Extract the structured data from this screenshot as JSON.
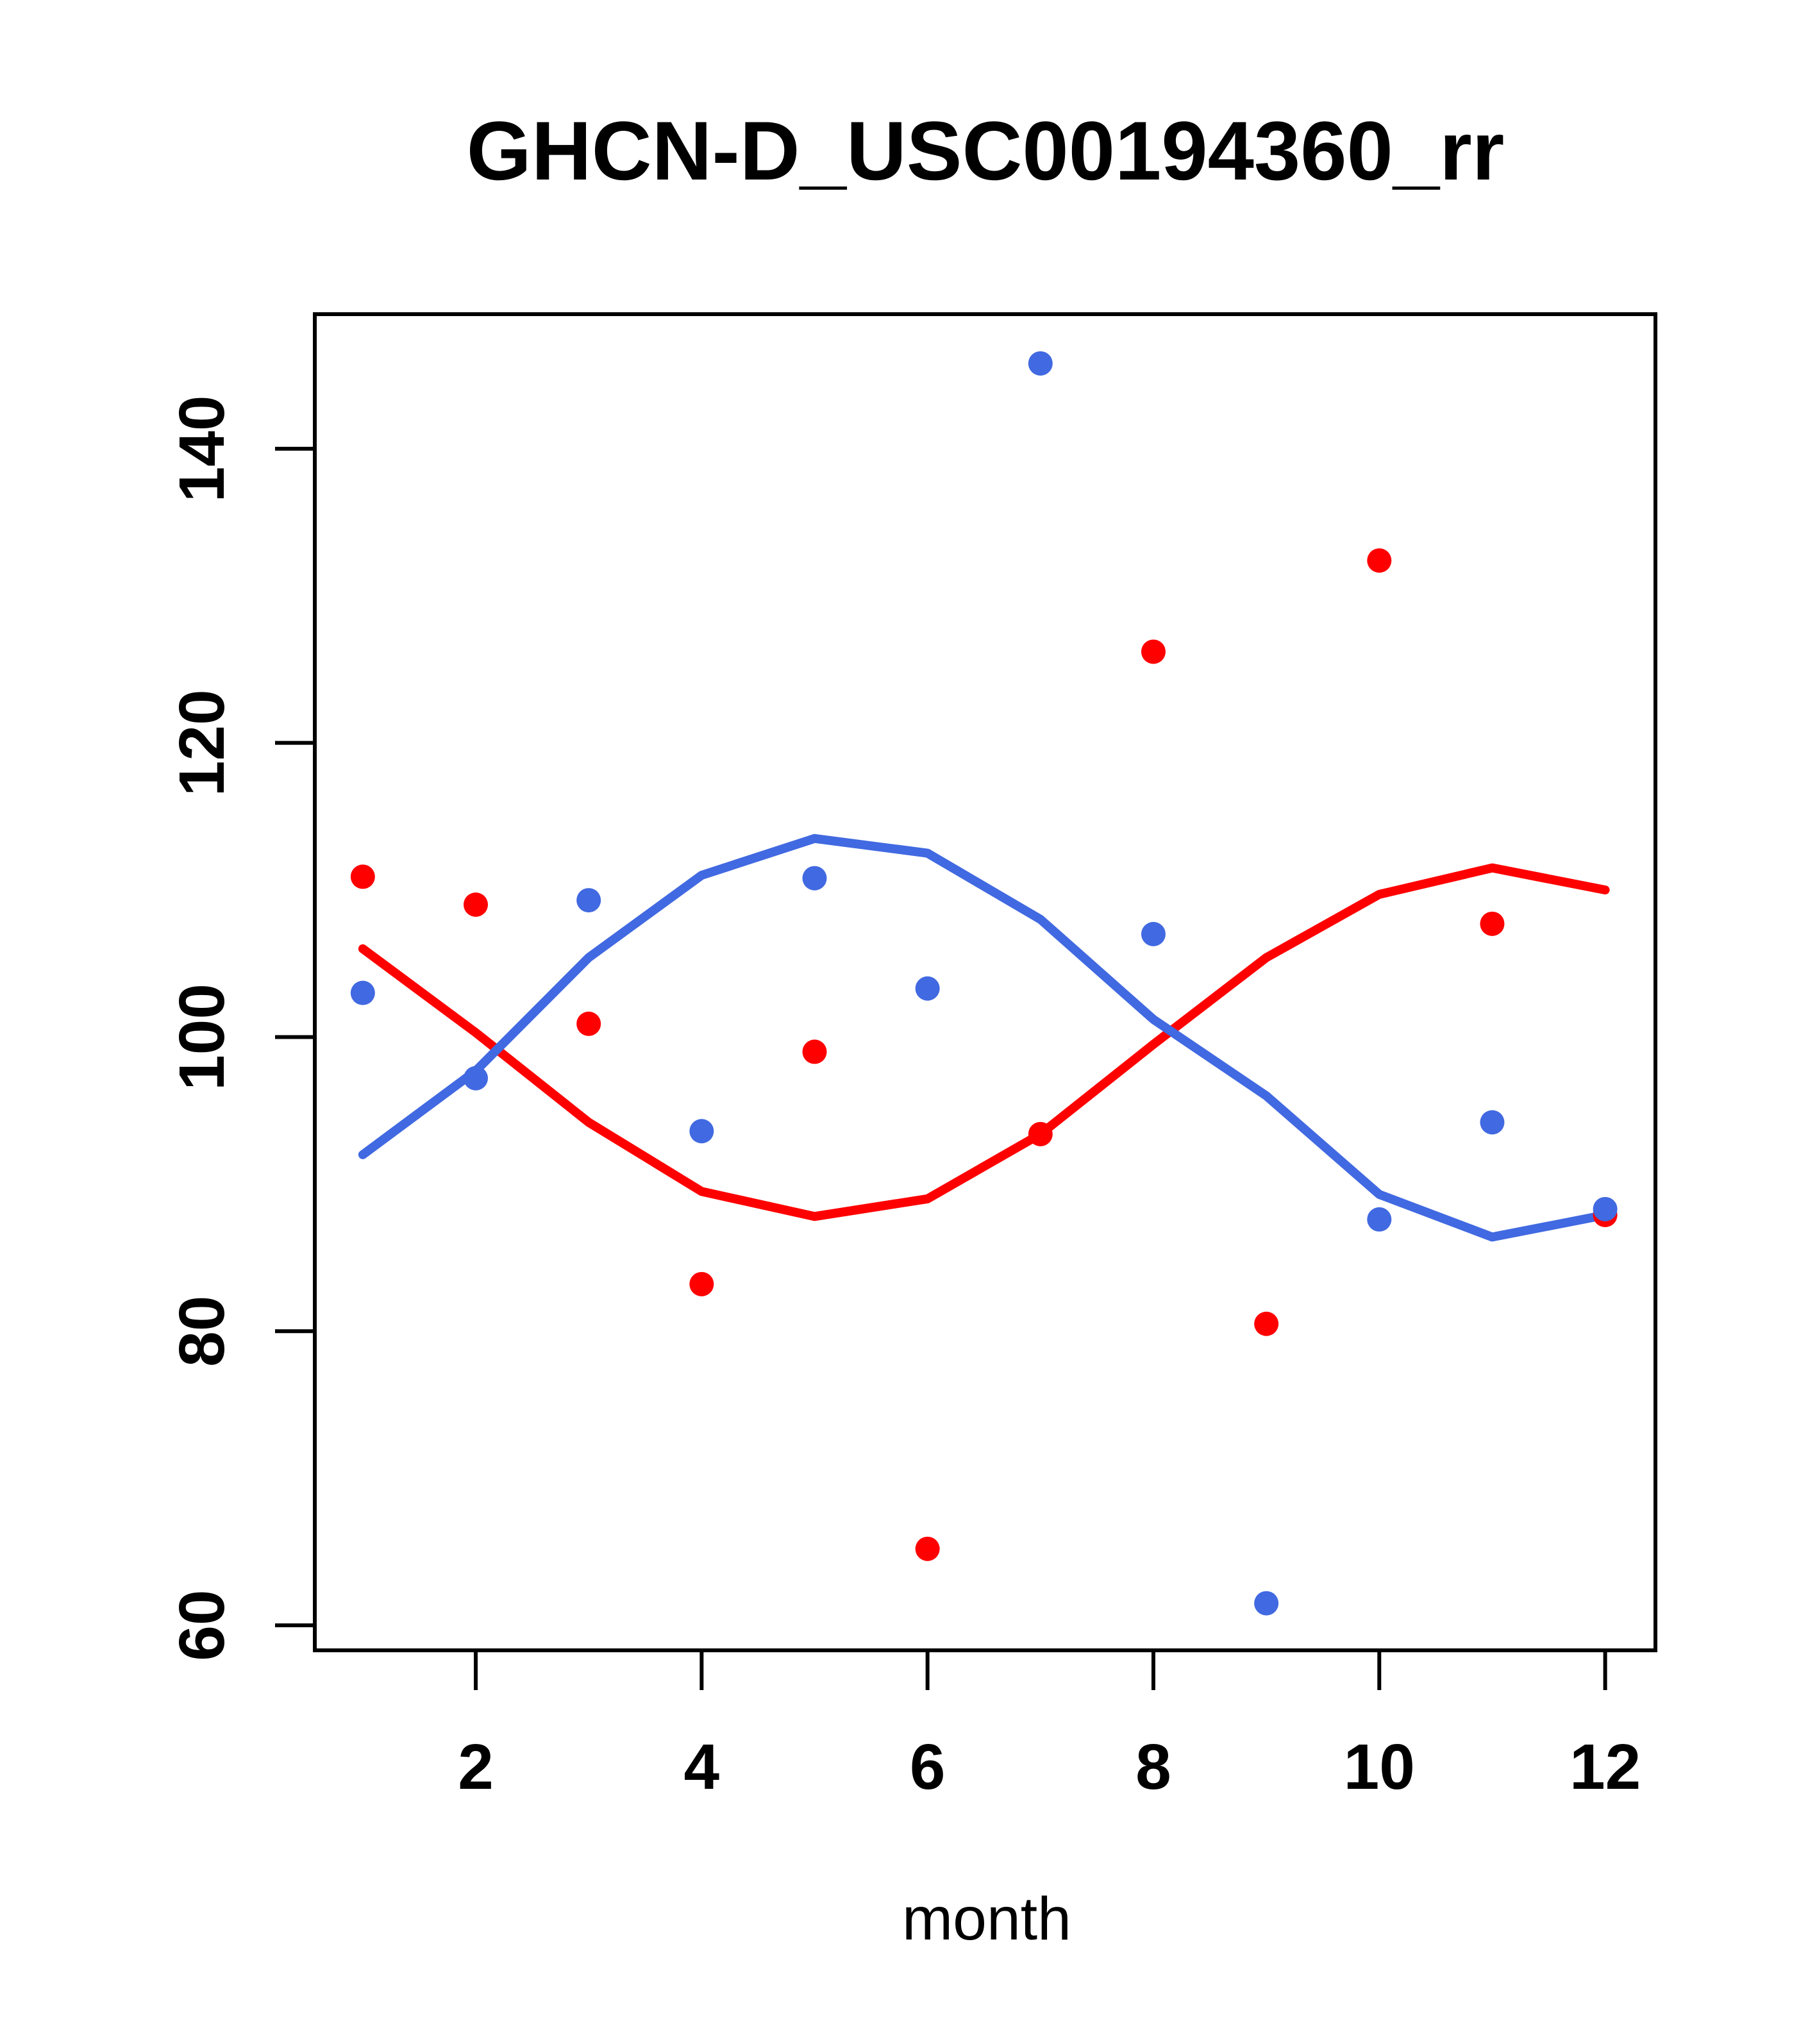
{
  "title": "GHCN-D_USC00194360_rr",
  "colors": {
    "red": "#FF0000",
    "blue": "#4169E1",
    "axis": "#000000",
    "background": "#FFFFFF"
  },
  "chart_data": {
    "type": "scatter",
    "title": "GHCN-D_USC00194360_rr",
    "xlabel": "month",
    "ylabel": "",
    "grid": false,
    "legend_position": "none",
    "x_ticks": [
      2,
      4,
      6,
      8,
      10,
      12
    ],
    "y_ticks": [
      60,
      80,
      100,
      120,
      140
    ],
    "xlim": [
      0.575,
      12.445
    ],
    "ylim": [
      58.3,
      149.15
    ],
    "x": [
      1,
      2,
      3,
      4,
      5,
      6,
      7,
      8,
      9,
      10,
      11,
      12
    ],
    "series": [
      {
        "name": "red-fit-line",
        "kind": "line",
        "color": "#FF0000",
        "values": [
          106.0,
          100.3,
          94.2,
          89.5,
          87.8,
          89.0,
          93.4,
          99.5,
          105.4,
          109.7,
          111.5,
          110.0
        ]
      },
      {
        "name": "blue-fit-line",
        "kind": "line",
        "color": "#4169E1",
        "values": [
          92.0,
          97.7,
          105.4,
          111.0,
          113.5,
          112.5,
          108.0,
          101.2,
          96.0,
          89.3,
          86.4,
          87.9
        ]
      },
      {
        "name": "red-points",
        "kind": "points",
        "color": "#FF0000",
        "values": [
          110.9,
          109.0,
          100.9,
          83.2,
          99.0,
          65.2,
          93.4,
          126.2,
          80.5,
          132.4,
          107.7,
          87.9
        ]
      },
      {
        "name": "blue-points",
        "kind": "points",
        "color": "#4169E1",
        "values": [
          103.0,
          97.2,
          109.3,
          93.6,
          110.8,
          103.3,
          145.8,
          107.0,
          61.5,
          87.6,
          94.2,
          88.3
        ]
      }
    ]
  }
}
